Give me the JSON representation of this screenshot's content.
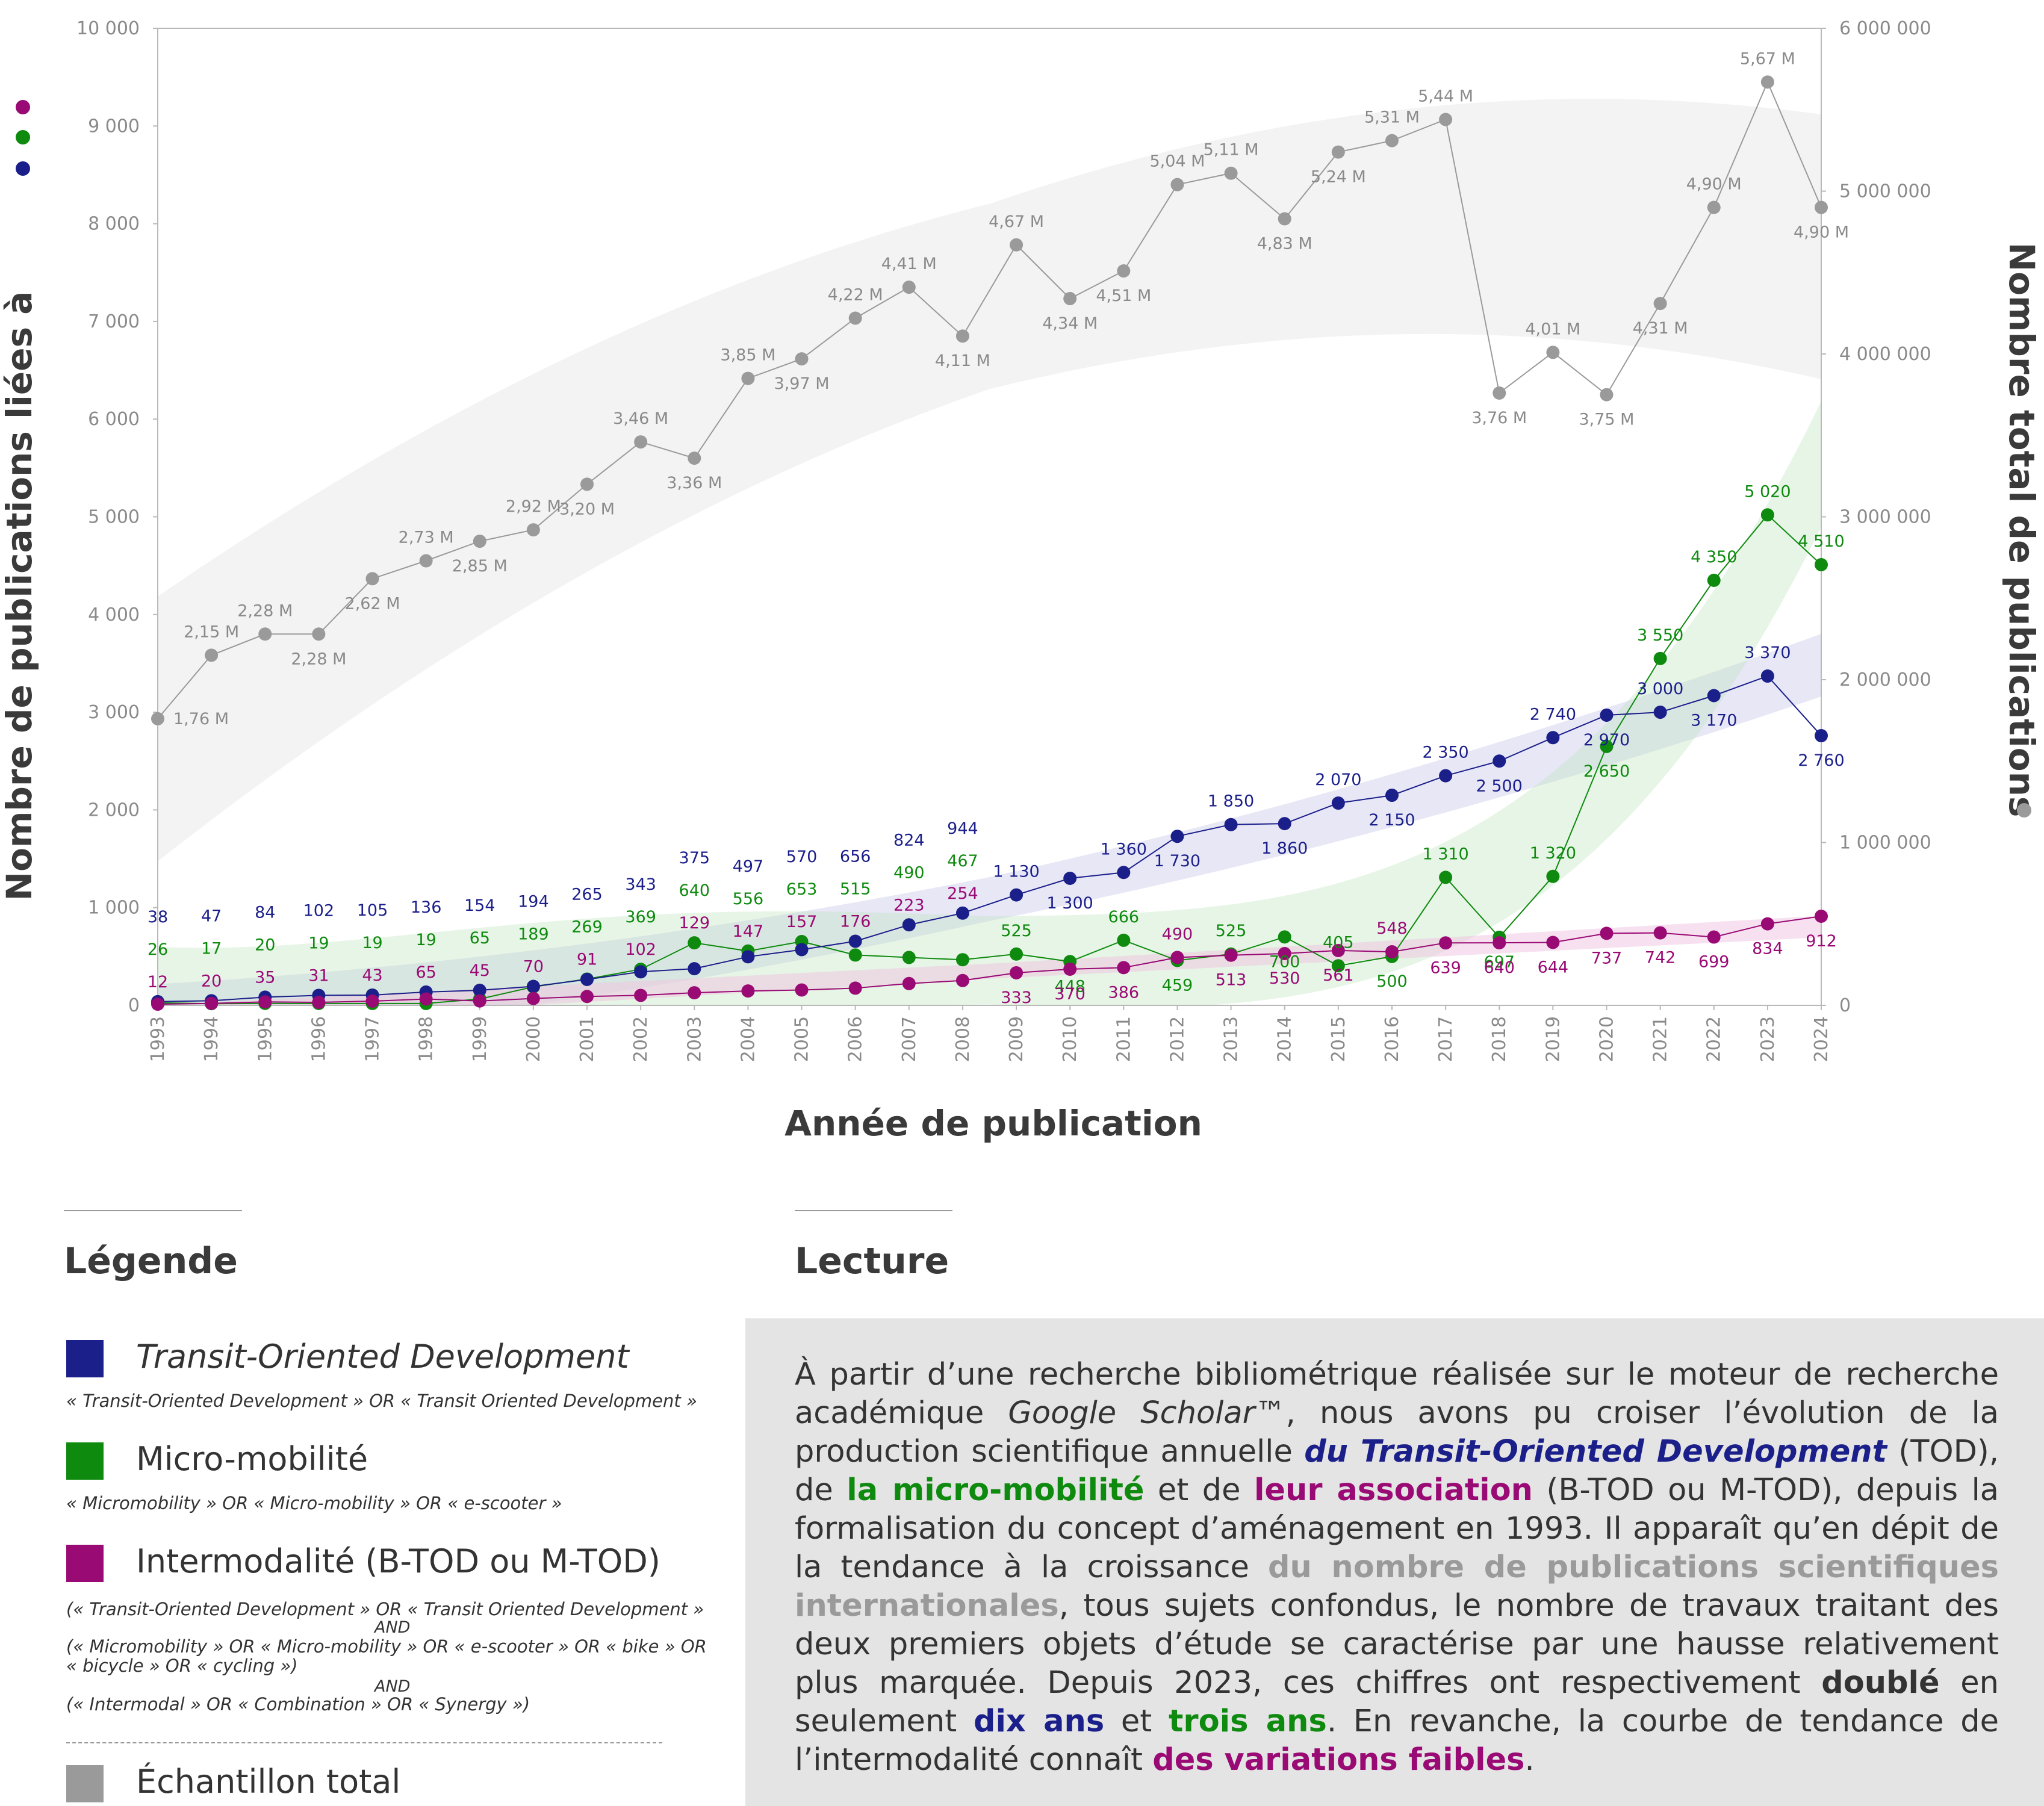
{
  "chart_data": {
    "type": "line",
    "xlabel": "Année de publication",
    "ylabel_left": "Nombre de publications liées à",
    "ylabel_right": "Nombre total de publications",
    "ylim_left": [
      0,
      10000
    ],
    "ylim_right": [
      0,
      6000000
    ],
    "yticks_left": [
      "0",
      "1 000",
      "2 000",
      "3 000",
      "4 000",
      "5 000",
      "6 000",
      "7 000",
      "8 000",
      "9 000",
      "10 000"
    ],
    "yticks_right": [
      "0",
      "1 000 000",
      "2 000 000",
      "3 000 000",
      "4 000 000",
      "5 000 000",
      "6 000 000"
    ],
    "x": [
      1993,
      1994,
      1995,
      1996,
      1997,
      1998,
      1999,
      2000,
      2001,
      2002,
      2003,
      2004,
      2005,
      2006,
      2007,
      2008,
      2009,
      2010,
      2011,
      2012,
      2013,
      2014,
      2015,
      2016,
      2017,
      2018,
      2019,
      2020,
      2021,
      2022,
      2023,
      2024
    ],
    "series": [
      {
        "key": "total",
        "axis": "right",
        "color": "#9a9a9a",
        "values": [
          1760000,
          2150000,
          2280000,
          2280000,
          2620000,
          2730000,
          2850000,
          2920000,
          3200000,
          3460000,
          3360000,
          3850000,
          3970000,
          4220000,
          4410000,
          4110000,
          4670000,
          4340000,
          4510000,
          5040000,
          5110000,
          4830000,
          5240000,
          5310000,
          5440000,
          3760000,
          4010000,
          3750000,
          4310000,
          4900000,
          5670000,
          4900000
        ],
        "labels": [
          "1,76 M",
          "2,15 M",
          "2,28 M",
          "2,28 M",
          "2,62 M",
          "2,73 M",
          "2,85 M",
          "2,92 M",
          "3,20 M",
          "3,46 M",
          "3,36 M",
          "3,85 M",
          "3,97 M",
          "4,22 M",
          "4,41 M",
          "4,11 M",
          "4,67 M",
          "4,34 M",
          "4,51 M",
          "5,04 M",
          "5,11 M",
          "4,83 M",
          "5,24 M",
          "5,31 M",
          "5,44 M",
          "3,76 M",
          "4,01 M",
          "3,75 M",
          "4,31 M",
          "4,90 M",
          "5,67 M",
          "4,90 M"
        ]
      },
      {
        "key": "tod",
        "axis": "left",
        "color": "#1b1f8a",
        "values": [
          38,
          47,
          84,
          102,
          105,
          136,
          154,
          194,
          265,
          343,
          375,
          497,
          570,
          656,
          824,
          944,
          1130,
          1300,
          1360,
          1730,
          1850,
          1860,
          2070,
          2150,
          2350,
          2500,
          2740,
          2970,
          3000,
          3170,
          3370,
          2760
        ],
        "labels": [
          "38",
          "47",
          "84",
          "102",
          "105",
          "136",
          "154",
          "194",
          "265",
          "343",
          "375",
          "497",
          "570",
          "656",
          "824",
          "944",
          "1 130",
          "1 300",
          "1 360",
          "1 730",
          "1 850",
          "1 860",
          "2 070",
          "2 150",
          "2 350",
          "2 500",
          "2 740",
          "2 970",
          "3 000",
          "3 170",
          "3 370",
          "2 760"
        ]
      },
      {
        "key": "micro",
        "axis": "left",
        "color": "#0e8a0e",
        "values": [
          26,
          17,
          20,
          19,
          19,
          19,
          65,
          189,
          269,
          369,
          640,
          556,
          653,
          515,
          490,
          467,
          525,
          448,
          666,
          459,
          525,
          700,
          405,
          500,
          1310,
          697,
          1320,
          2650,
          3550,
          4350,
          5020,
          4510
        ],
        "labels": [
          "26",
          "17",
          "20",
          "19",
          "19",
          "19",
          "65",
          "189",
          "269",
          "369",
          "640",
          "556",
          "653",
          "515",
          "490",
          "467",
          "525",
          "448",
          "666",
          "459",
          "525",
          "700",
          "405",
          "500",
          "1 310",
          "697",
          "1 320",
          "2 650",
          "3 550",
          "4 350",
          "5 020",
          "4 510"
        ]
      },
      {
        "key": "inter",
        "axis": "left",
        "color": "#9a0a74",
        "values": [
          12,
          20,
          35,
          31,
          43,
          65,
          45,
          70,
          91,
          102,
          129,
          147,
          157,
          176,
          223,
          254,
          333,
          370,
          386,
          490,
          513,
          530,
          561,
          548,
          639,
          640,
          644,
          737,
          742,
          699,
          834,
          912
        ],
        "labels": [
          "12",
          "20",
          "35",
          "31",
          "43",
          "65",
          "45",
          "70",
          "91",
          "102",
          "129",
          "147",
          "157",
          "176",
          "223",
          "254",
          "333",
          "370",
          "386",
          "490",
          "513",
          "530",
          "561",
          "548",
          "639",
          "640",
          "644",
          "737",
          "742",
          "699",
          "834",
          "912"
        ]
      }
    ]
  },
  "legend": {
    "heading": "Légende",
    "tod_label": "Transit-Oriented Development",
    "tod_query": "« Transit-Oriented Development » OR « Transit Oriented Development »",
    "micro_label": "Micro-mobilité",
    "micro_query": "« Micromobility » OR « Micro-mobility » OR « e-scooter »",
    "inter_label": "Intermodalité (B-TOD ou M-TOD)",
    "inter_query_1": "(« Transit-Oriented Development » OR « Transit Oriented Development »",
    "and_1": "AND",
    "inter_query_2": "(« Micromobility » OR « Micro-mobility » OR « e-scooter » OR « bike » OR",
    "inter_query_3": "« bicycle » OR « cycling »)",
    "and_2": "AND",
    "inter_query_4": "(« Intermodal » OR « Combination » OR « Synergy »)",
    "total_label": "Échantillon total",
    "colors": {
      "tod": "#1b1f8a",
      "micro": "#0e8a0e",
      "inter": "#9a0a74",
      "total": "#9a9a9a"
    }
  },
  "lecture": {
    "heading": "Lecture",
    "t1": "À partir d’une recherche bibliométrique réalisée sur le moteur de recherche académique ",
    "t2": "Google Scholar",
    "t3": "™, nous avons pu croiser l’évolution de la production scientifique annuelle ",
    "t4": "du Transit-Oriented Development",
    "t5": " (TOD), de ",
    "t6": "la micro-mobilité",
    "t7": " et de ",
    "t8": "leur association",
    "t9": " (B-TOD ou M-TOD), depuis la formalisation du concept d’aménagement en 1993. Il apparaît qu’en dépit de la tendance à la croissance ",
    "t10": "du nombre de publications scientifiques internationales",
    "t11": ", tous sujets confondus, le nombre de travaux traitant des deux premiers objets d’étude se caractérise par une hausse relativement plus marquée. Depuis 2023, ces chiffres ont respectivement ",
    "t12": "doublé",
    "t13": " en seulement ",
    "t14": "dix ans",
    "t15": " et ",
    "t16": "trois ans",
    "t17": ". En revanche, la courbe de tendance de l’intermodalité connaît ",
    "t18": "des variations faibles",
    "t19": "."
  }
}
